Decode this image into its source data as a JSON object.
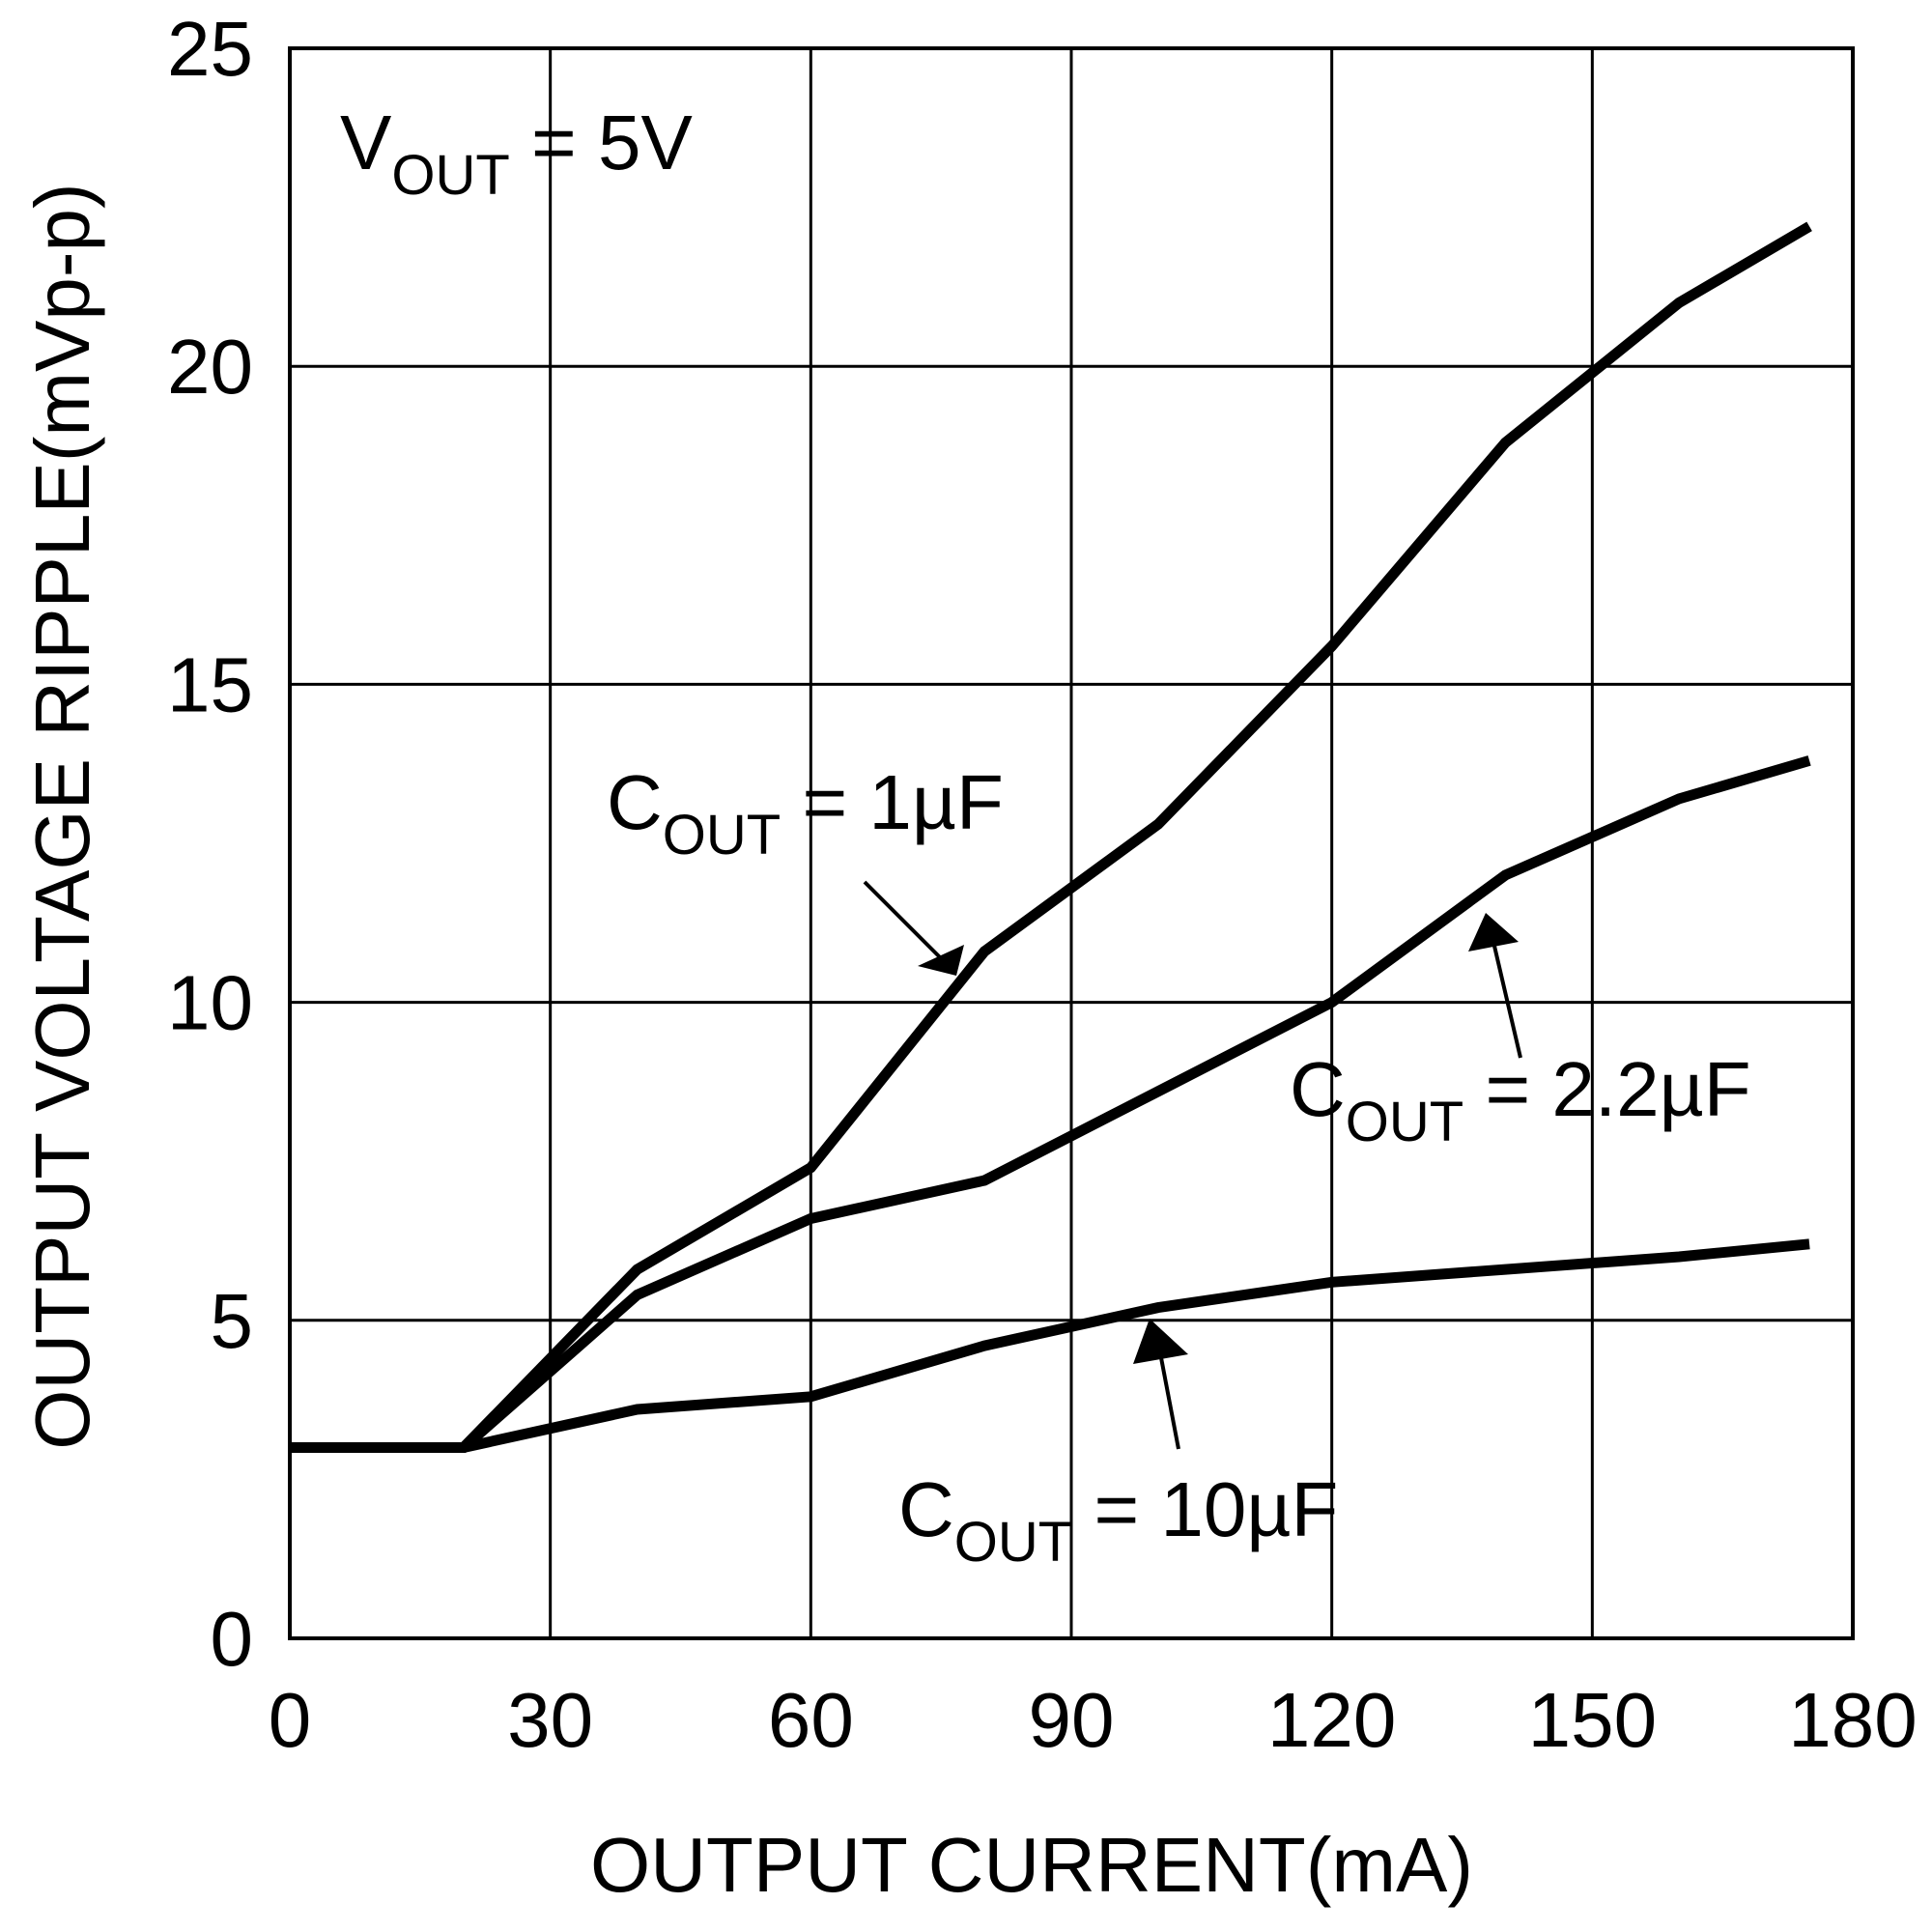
{
  "chart_data": {
    "type": "line",
    "title": "",
    "annotation": {
      "symbol": "V",
      "subscript": "OUT",
      "suffix": " = 5V"
    },
    "xlabel": "OUTPUT CURRENT(mA)",
    "ylabel": "OUTPUT VOLTAGE RIPPLE(mVp-p)",
    "xlim": [
      0,
      180
    ],
    "ylim": [
      0,
      25
    ],
    "xticks": [
      0,
      30,
      60,
      90,
      120,
      150,
      180
    ],
    "yticks": [
      0,
      5,
      10,
      15,
      20,
      25
    ],
    "xtick_labels": [
      "0",
      "30",
      "60",
      "90",
      "120",
      "150",
      "180"
    ],
    "ytick_labels": [
      "0",
      "5",
      "10",
      "15",
      "20",
      "25"
    ],
    "grid": true,
    "series": [
      {
        "name": "COUT = 1µF",
        "label": {
          "symbol": "C",
          "subscript": "OUT",
          "suffix": " = 1µF"
        },
        "x": [
          0,
          20,
          40,
          60,
          80,
          100,
          120,
          140,
          160,
          175
        ],
        "y": [
          3.0,
          3.0,
          5.8,
          7.4,
          10.8,
          12.8,
          15.6,
          18.8,
          21.0,
          22.2
        ]
      },
      {
        "name": "COUT = 2.2µF",
        "label": {
          "symbol": "C",
          "subscript": "OUT",
          "suffix": " = 2.2µF"
        },
        "x": [
          0,
          20,
          40,
          60,
          80,
          100,
          120,
          140,
          160,
          175
        ],
        "y": [
          3.0,
          3.0,
          5.4,
          6.6,
          7.2,
          8.6,
          10.0,
          12.0,
          13.2,
          13.8
        ]
      },
      {
        "name": "COUT = 10µF",
        "label": {
          "symbol": "C",
          "subscript": "OUT",
          "suffix": " = 10µF"
        },
        "x": [
          0,
          20,
          40,
          60,
          80,
          100,
          120,
          140,
          160,
          175
        ],
        "y": [
          3.0,
          3.0,
          3.6,
          3.8,
          4.6,
          5.2,
          5.6,
          5.8,
          6.0,
          6.2
        ]
      }
    ]
  }
}
